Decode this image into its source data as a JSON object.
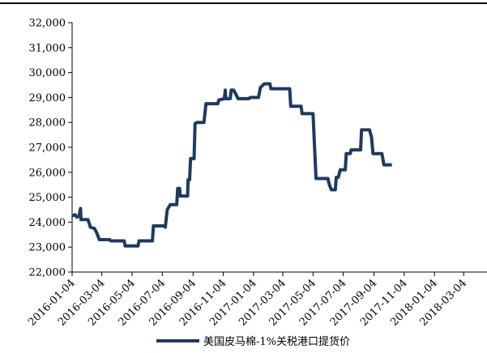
{
  "chart_data": {
    "type": "line",
    "title": "",
    "xlabel": "",
    "ylabel": "",
    "ylim": [
      22000,
      32000
    ],
    "yticks": [
      "22,000",
      "23,000",
      "24,000",
      "25,000",
      "26,000",
      "27,000",
      "28,000",
      "29,000",
      "30,000",
      "31,000",
      "32,000"
    ],
    "xlim": [
      "2016-01-04",
      "2018-04-20"
    ],
    "xticks": [
      "2016-01-04",
      "2016-03-04",
      "2016-05-04",
      "2016-07-04",
      "2016-09-04",
      "2016-11-04",
      "2017-01-04",
      "2017-03-04",
      "2017-05-04",
      "2017-07-04",
      "2017-09-04",
      "2017-11-04",
      "2018-01-04",
      "2018-03-04"
    ],
    "grid": false,
    "legend_position": "bottom-center",
    "series": [
      {
        "name": "美国皮马棉-1%关税港口提货价",
        "color": "#1f3a5f",
        "points": [
          [
            "2016-01-04",
            24250
          ],
          [
            "2016-01-10",
            24300
          ],
          [
            "2016-01-14",
            24200
          ],
          [
            "2016-01-18",
            24250
          ],
          [
            "2016-01-21",
            24550
          ],
          [
            "2016-01-22",
            24100
          ],
          [
            "2016-02-05",
            24100
          ],
          [
            "2016-02-10",
            23800
          ],
          [
            "2016-02-18",
            23750
          ],
          [
            "2016-02-22",
            23600
          ],
          [
            "2016-02-28",
            23300
          ],
          [
            "2016-03-20",
            23300
          ],
          [
            "2016-03-22",
            23250
          ],
          [
            "2016-04-18",
            23250
          ],
          [
            "2016-04-20",
            23050
          ],
          [
            "2016-05-16",
            23050
          ],
          [
            "2016-05-18",
            23250
          ],
          [
            "2016-06-14",
            23250
          ],
          [
            "2016-06-16",
            23850
          ],
          [
            "2016-07-08",
            23850
          ],
          [
            "2016-07-10",
            23800
          ],
          [
            "2016-07-14",
            24500
          ],
          [
            "2016-07-20",
            24700
          ],
          [
            "2016-08-02",
            24700
          ],
          [
            "2016-08-04",
            25350
          ],
          [
            "2016-08-08",
            25350
          ],
          [
            "2016-08-09",
            25050
          ],
          [
            "2016-08-24",
            25050
          ],
          [
            "2016-08-25",
            25700
          ],
          [
            "2016-08-28",
            25700
          ],
          [
            "2016-08-30",
            26550
          ],
          [
            "2016-09-06",
            26550
          ],
          [
            "2016-09-08",
            27950
          ],
          [
            "2016-09-12",
            28000
          ],
          [
            "2016-09-26",
            28000
          ],
          [
            "2016-09-30",
            28750
          ],
          [
            "2016-10-24",
            28750
          ],
          [
            "2016-10-26",
            28900
          ],
          [
            "2016-11-06",
            28950
          ],
          [
            "2016-11-08",
            29300
          ],
          [
            "2016-11-09",
            28950
          ],
          [
            "2016-11-18",
            28950
          ],
          [
            "2016-11-20",
            29300
          ],
          [
            "2016-11-25",
            29300
          ],
          [
            "2016-12-04",
            28950
          ],
          [
            "2016-12-26",
            28950
          ],
          [
            "2016-12-28",
            29000
          ],
          [
            "2017-01-14",
            29000
          ],
          [
            "2017-01-18",
            29400
          ],
          [
            "2017-01-26",
            29550
          ],
          [
            "2017-02-06",
            29550
          ],
          [
            "2017-02-08",
            29350
          ],
          [
            "2017-03-18",
            29350
          ],
          [
            "2017-03-20",
            28650
          ],
          [
            "2017-04-10",
            28650
          ],
          [
            "2017-04-12",
            28350
          ],
          [
            "2017-05-04",
            28350
          ],
          [
            "2017-05-10",
            25750
          ],
          [
            "2017-06-03",
            25750
          ],
          [
            "2017-06-06",
            25500
          ],
          [
            "2017-06-10",
            25300
          ],
          [
            "2017-06-18",
            25300
          ],
          [
            "2017-06-20",
            25800
          ],
          [
            "2017-06-24",
            25800
          ],
          [
            "2017-06-28",
            26100
          ],
          [
            "2017-07-08",
            26100
          ],
          [
            "2017-07-10",
            26750
          ],
          [
            "2017-07-18",
            26750
          ],
          [
            "2017-07-20",
            26900
          ],
          [
            "2017-08-08",
            26900
          ],
          [
            "2017-08-10",
            27700
          ],
          [
            "2017-08-26",
            27700
          ],
          [
            "2017-08-30",
            27400
          ],
          [
            "2017-09-02",
            26750
          ],
          [
            "2017-09-20",
            26750
          ],
          [
            "2017-09-24",
            26300
          ],
          [
            "2017-10-10",
            26300
          ]
        ]
      }
    ]
  }
}
